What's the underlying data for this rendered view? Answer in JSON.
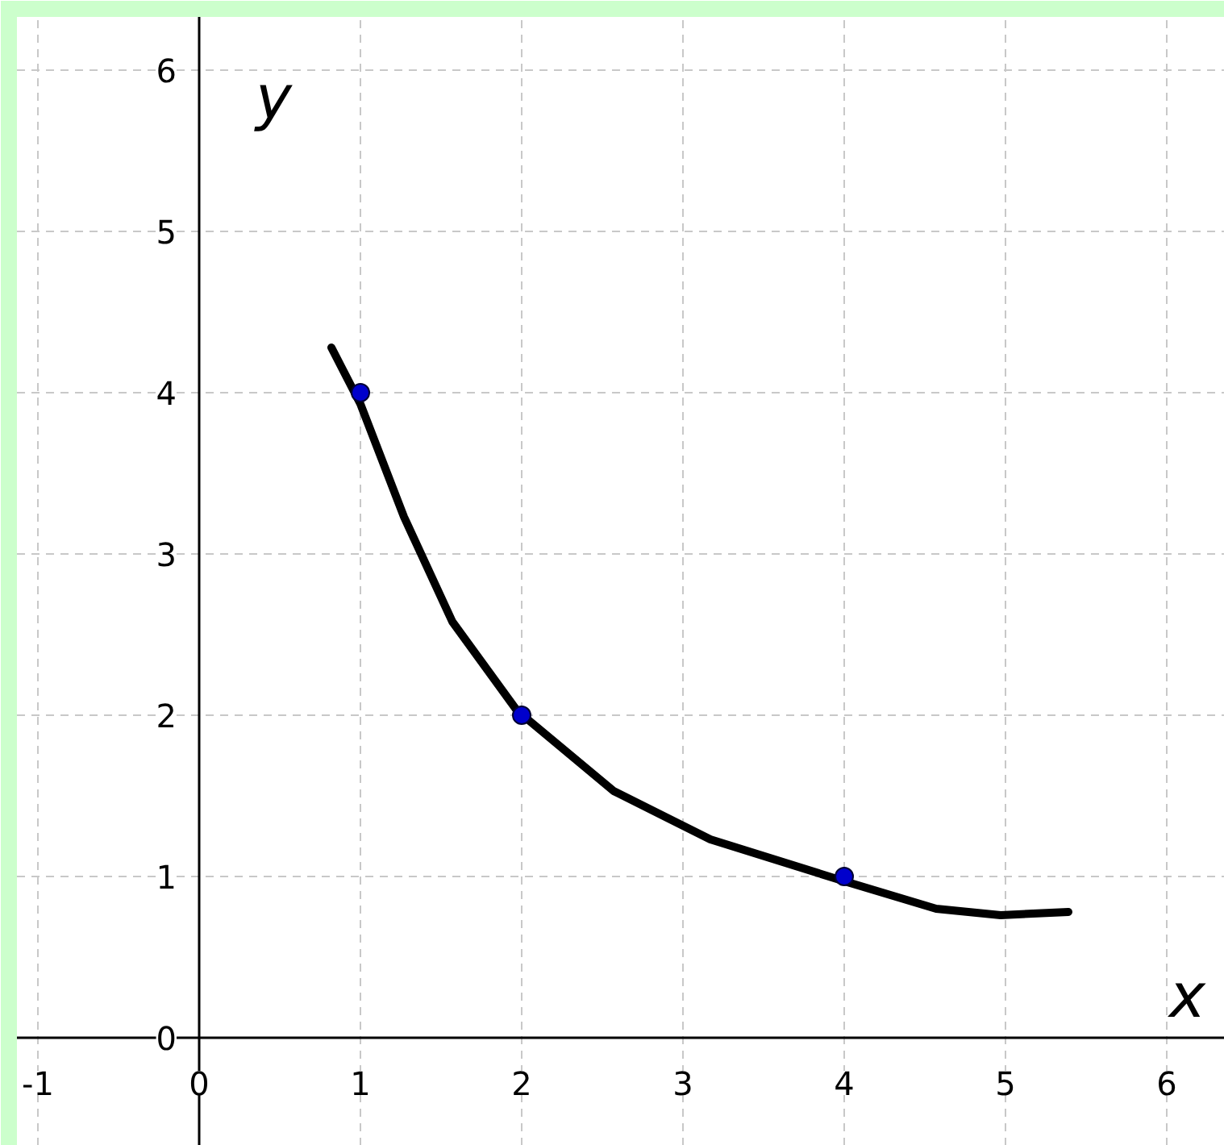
{
  "chart_data": {
    "type": "scatter",
    "xlabel": "x",
    "ylabel": "y",
    "xlim": [
      -1.13,
      6.36
    ],
    "ylim": [
      -0.67,
      6.33
    ],
    "xticks": [
      -1,
      0,
      1,
      2,
      3,
      4,
      5,
      6
    ],
    "yticks": [
      0,
      1,
      2,
      3,
      4,
      5,
      6
    ],
    "grid": true,
    "marker": "circle",
    "series": [
      {
        "color": "#0000cc",
        "x": [
          1,
          2,
          4
        ],
        "values": [
          4,
          2,
          1
        ]
      },
      {
        "type": "line",
        "color": "#000000",
        "marker": "none",
        "x": [
          0.82,
          1.0,
          1.27,
          1.57,
          1.97,
          2.57,
          3.17,
          3.97,
          4.57,
          4.97,
          5.39
        ],
        "values": [
          4.28,
          3.93,
          3.23,
          2.58,
          2.03,
          1.53,
          1.23,
          0.98,
          0.8,
          0.76,
          0.78
        ]
      }
    ]
  }
}
